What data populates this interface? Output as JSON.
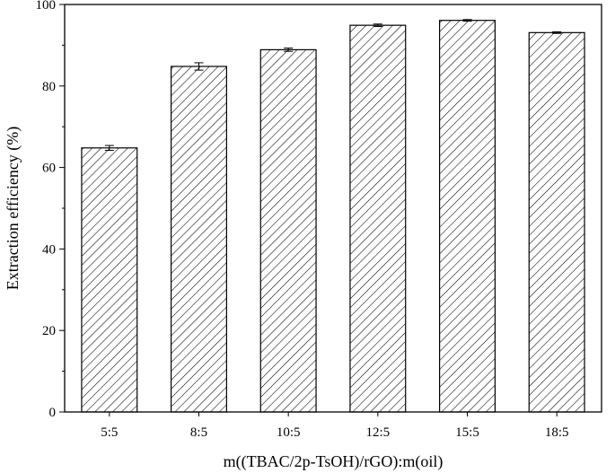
{
  "chart_data": {
    "type": "bar",
    "title": "",
    "xlabel": "m((TBAC/2p-TsOH)/rGO):m(oil)",
    "ylabel": "Extraction efficiency (%)",
    "categories": [
      "5:5",
      "8:5",
      "10:5",
      "12:5",
      "15:5",
      "18:5"
    ],
    "values": [
      64.8,
      84.8,
      88.9,
      94.9,
      96.1,
      93.1
    ],
    "errors": [
      0.6,
      0.9,
      0.4,
      0.3,
      0.2,
      0.2
    ],
    "ylim": [
      0,
      100
    ],
    "yticks": [
      0,
      20,
      40,
      60,
      80,
      100
    ],
    "grid": false,
    "bar_fill": "diagonal-hatch",
    "colors": {
      "bar_stroke": "#000000",
      "hatch": "#000000",
      "background": "#ffffff"
    }
  }
}
